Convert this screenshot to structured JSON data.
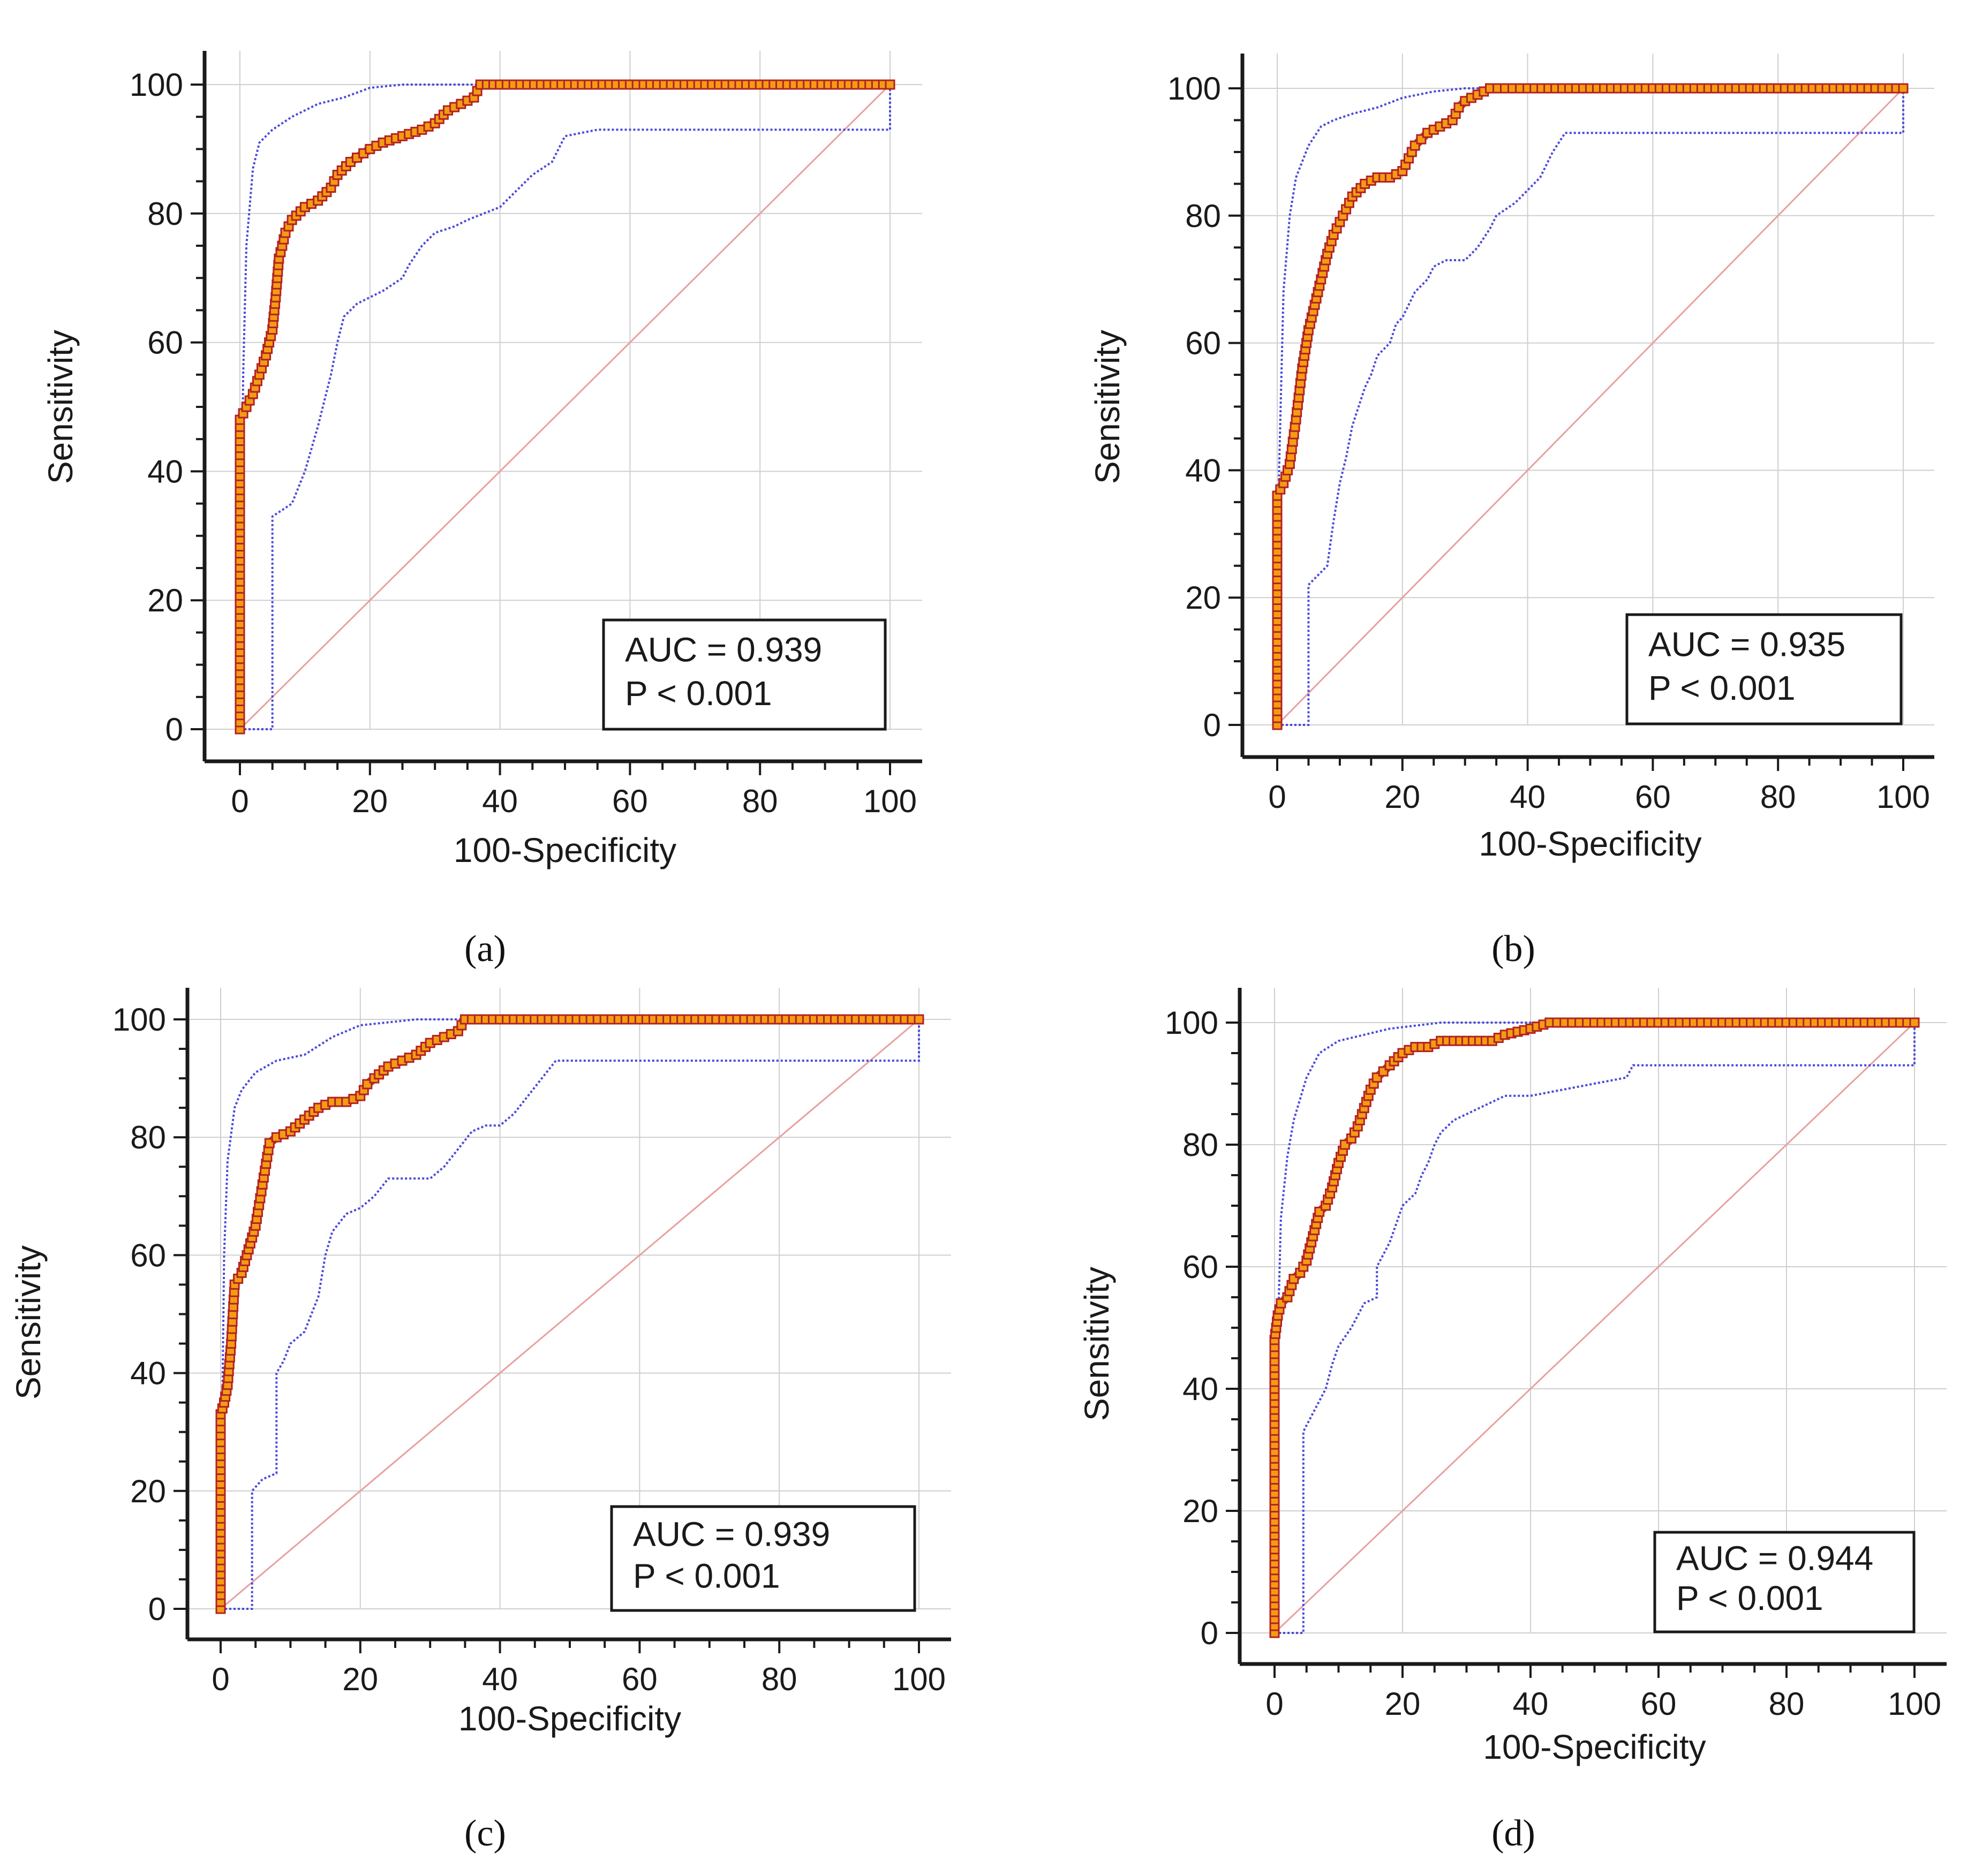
{
  "colors": {
    "roc_line": "#c0392b",
    "roc_marker_fill": "#f39c12",
    "roc_marker_edge": "#b22222",
    "ci_line": "#4a4adb",
    "reference_line": "#e8a0a0",
    "grid": "#cfcfcf",
    "axis": "#1a1a1a",
    "text": "#1a1a1a"
  },
  "chart_data": [
    {
      "id": "a",
      "type": "line",
      "caption": "(a)",
      "xlabel": "100-Specificity",
      "ylabel": "Sensitivity",
      "xlim": [
        0,
        100
      ],
      "ylim": [
        0,
        100
      ],
      "x_ticks": [
        0,
        20,
        40,
        60,
        80,
        100
      ],
      "y_ticks": [
        0,
        20,
        40,
        60,
        80,
        100
      ],
      "grid": true,
      "annotation": {
        "auc": "AUC = 0.939",
        "p": "P < 0.001",
        "placement": "bottom-right"
      },
      "series": [
        {
          "name": "ROC curve",
          "x": [
            0,
            0,
            1,
            2,
            3,
            4,
            5,
            5.5,
            6,
            7,
            8,
            10,
            12,
            14,
            15,
            17,
            20,
            22,
            25,
            28,
            30,
            32,
            34,
            36,
            37,
            40,
            60,
            80,
            100
          ],
          "y": [
            0,
            48,
            50,
            52,
            55,
            58,
            62,
            67,
            73,
            77,
            79,
            81,
            82,
            84,
            86,
            88,
            90,
            91,
            92,
            93,
            94,
            96,
            97,
            98,
            100,
            100,
            100,
            100,
            100
          ]
        },
        {
          "name": "Upper 95% CI",
          "x": [
            0,
            0.2,
            0.5,
            1,
            2,
            3,
            5,
            8,
            12,
            16,
            20,
            25,
            30,
            35,
            38,
            40,
            100
          ],
          "y": [
            0,
            25,
            55,
            75,
            87,
            91,
            93,
            95,
            97,
            98,
            99.5,
            100,
            100,
            100,
            100,
            100,
            100
          ]
        },
        {
          "name": "Lower 95% CI",
          "x": [
            0,
            5,
            5,
            8,
            10,
            12,
            14,
            15,
            16,
            18,
            20,
            22,
            25,
            26,
            28,
            30,
            33,
            35,
            40,
            43,
            45,
            48,
            50,
            55,
            60,
            80,
            100,
            100
          ],
          "y": [
            0,
            0,
            33,
            35,
            40,
            47,
            55,
            60,
            64,
            66,
            67,
            68,
            70,
            72,
            75,
            77,
            78,
            79,
            81,
            84,
            86,
            88,
            92,
            93,
            93,
            93,
            93,
            100
          ]
        },
        {
          "name": "Reference line",
          "x": [
            0,
            100
          ],
          "y": [
            0,
            100
          ]
        }
      ]
    },
    {
      "id": "b",
      "type": "line",
      "caption": "(b)",
      "xlabel": "100-Specificity",
      "ylabel": "Sensitivity",
      "xlim": [
        0,
        100
      ],
      "ylim": [
        0,
        100
      ],
      "x_ticks": [
        0,
        20,
        40,
        60,
        80,
        100
      ],
      "y_ticks": [
        0,
        20,
        40,
        60,
        80,
        100
      ],
      "grid": true,
      "annotation": {
        "auc": "AUC = 0.935",
        "p": "P < 0.001",
        "placement": "bottom-right"
      },
      "series": [
        {
          "name": "ROC curve",
          "x": [
            0,
            0,
            1,
            2,
            3,
            4,
            5,
            6,
            7,
            8,
            9,
            10,
            11,
            12,
            14,
            16,
            18,
            20,
            21,
            22,
            23,
            24,
            26,
            28,
            29,
            30,
            32,
            34,
            40,
            60,
            80,
            100
          ],
          "y": [
            0,
            36,
            38,
            41,
            48,
            56,
            62,
            66,
            70,
            74,
            77,
            79,
            81,
            83,
            85,
            86,
            86,
            87,
            89,
            91,
            92,
            93,
            94,
            95,
            97,
            98,
            99,
            100,
            100,
            100,
            100,
            100
          ]
        },
        {
          "name": "Upper 95% CI",
          "x": [
            0,
            0.3,
            1,
            2,
            3,
            5,
            7,
            9,
            12,
            16,
            20,
            25,
            30,
            35,
            40,
            100
          ],
          "y": [
            0,
            40,
            68,
            80,
            86,
            91,
            94,
            95,
            96,
            97,
            98.5,
            99.5,
            100,
            100,
            100,
            100
          ]
        },
        {
          "name": "Lower 95% CI",
          "x": [
            0,
            5,
            5,
            6,
            8,
            9,
            10,
            11,
            12,
            13,
            14,
            15,
            16,
            18,
            19,
            20,
            22,
            24,
            25,
            27,
            30,
            32,
            34,
            35,
            38,
            40,
            42,
            44,
            46,
            50,
            60,
            80,
            100,
            100
          ],
          "y": [
            0,
            0,
            22,
            23,
            25,
            32,
            38,
            42,
            47,
            50,
            53,
            55,
            58,
            60,
            63,
            64,
            68,
            70,
            72,
            73,
            73,
            75,
            78,
            80,
            82,
            84,
            86,
            90,
            93,
            93,
            93,
            93,
            93,
            100
          ]
        },
        {
          "name": "Reference line",
          "x": [
            0,
            100
          ],
          "y": [
            0,
            100
          ]
        }
      ]
    },
    {
      "id": "c",
      "type": "line",
      "caption": "(c)",
      "xlabel": "100-Specificity",
      "ylabel": "Sensitivity",
      "xlim": [
        0,
        100
      ],
      "ylim": [
        0,
        100
      ],
      "x_ticks": [
        0,
        20,
        40,
        60,
        80,
        100
      ],
      "y_ticks": [
        0,
        20,
        40,
        60,
        80,
        100
      ],
      "grid": true,
      "annotation": {
        "auc": "AUC = 0.939",
        "p": "P < 0.001",
        "placement": "bottom-right"
      },
      "series": [
        {
          "name": "ROC curve",
          "x": [
            0,
            0,
            0.5,
            1,
            1.5,
            2,
            3,
            4,
            5,
            6,
            7,
            8,
            10,
            12,
            14,
            16,
            18,
            20,
            21,
            22,
            24,
            26,
            28,
            30,
            32,
            34,
            35,
            40,
            60,
            80,
            100
          ],
          "y": [
            0,
            33,
            35,
            38,
            45,
            55,
            57,
            61,
            65,
            72,
            79,
            80,
            81,
            83,
            85,
            86,
            86,
            87,
            89,
            90,
            92,
            93,
            94,
            96,
            97,
            98,
            100,
            100,
            100,
            100,
            100
          ]
        },
        {
          "name": "Upper 95% CI",
          "x": [
            0,
            0.2,
            0.5,
            1,
            2,
            3,
            5,
            8,
            12,
            16,
            20,
            24,
            28,
            32,
            36,
            40,
            100
          ],
          "y": [
            0,
            30,
            60,
            76,
            85,
            88,
            91,
            93,
            94,
            97,
            99,
            99.5,
            100,
            100,
            100,
            100,
            100
          ]
        },
        {
          "name": "Lower 95% CI",
          "x": [
            0,
            4.5,
            4.5,
            6,
            8,
            8,
            9,
            10,
            12,
            14,
            15,
            16,
            18,
            20,
            22,
            24,
            26,
            30,
            32,
            34,
            36,
            38,
            40,
            42,
            44,
            46,
            48,
            50,
            60,
            80,
            100,
            100
          ],
          "y": [
            0,
            0,
            20,
            22,
            23,
            40,
            42,
            45,
            47,
            53,
            60,
            64,
            67,
            68,
            70,
            73,
            73,
            73,
            75,
            78,
            81,
            82,
            82,
            84,
            87,
            90,
            93,
            93,
            93,
            93,
            93,
            100
          ]
        },
        {
          "name": "Reference line",
          "x": [
            0,
            100
          ],
          "y": [
            0,
            100
          ]
        }
      ]
    },
    {
      "id": "d",
      "type": "line",
      "caption": "(d)",
      "xlabel": "100-Specificity",
      "ylabel": "Sensitivity",
      "xlim": [
        0,
        100
      ],
      "ylim": [
        0,
        100
      ],
      "x_ticks": [
        0,
        20,
        40,
        60,
        80,
        100
      ],
      "y_ticks": [
        0,
        20,
        40,
        60,
        80,
        100
      ],
      "grid": true,
      "annotation": {
        "auc": "AUC = 0.944",
        "p": "P < 0.001",
        "placement": "bottom-right"
      },
      "series": [
        {
          "name": "ROC curve",
          "x": [
            0,
            0,
            0.5,
            1,
            2,
            3,
            4,
            5,
            6,
            7,
            8,
            9,
            10,
            11,
            12,
            13,
            14,
            15,
            16,
            17,
            18,
            20,
            22,
            24,
            26,
            30,
            34,
            36,
            40,
            43,
            50,
            60,
            80,
            100
          ],
          "y": [
            0,
            48,
            52,
            54,
            55,
            58,
            59,
            61,
            65,
            69,
            70,
            73,
            77,
            80,
            81,
            83,
            86,
            89,
            91,
            92,
            93,
            95,
            96,
            96,
            97,
            97,
            97,
            98,
            99,
            100,
            100,
            100,
            100,
            100
          ]
        },
        {
          "name": "Upper 95% CI",
          "x": [
            0,
            0.3,
            1,
            2,
            3,
            5,
            7,
            10,
            14,
            18,
            22,
            26,
            30,
            35,
            40,
            100
          ],
          "y": [
            0,
            40,
            68,
            78,
            84,
            91,
            95,
            97,
            98,
            99,
            99.5,
            100,
            100,
            100,
            100,
            100
          ]
        },
        {
          "name": "Lower 95% CI",
          "x": [
            0,
            4.5,
            4.5,
            6,
            8,
            9,
            10,
            12,
            14,
            16,
            16,
            18,
            19,
            20,
            22,
            23,
            24,
            25,
            26,
            27,
            28,
            30,
            32,
            34,
            36,
            40,
            45,
            50,
            55,
            56,
            60,
            80,
            100,
            100
          ],
          "y": [
            0,
            0,
            33,
            36,
            40,
            44,
            47,
            50,
            54,
            55,
            60,
            64,
            67,
            70,
            72,
            75,
            77,
            80,
            82,
            83,
            84,
            85,
            86,
            87,
            88,
            88,
            89,
            90,
            91,
            93,
            93,
            93,
            93,
            100
          ]
        },
        {
          "name": "Reference line",
          "x": [
            0,
            100
          ],
          "y": [
            0,
            100
          ]
        }
      ]
    }
  ]
}
